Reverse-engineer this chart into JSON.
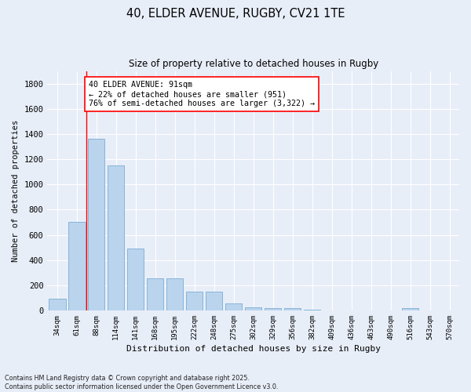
{
  "title1": "40, ELDER AVENUE, RUGBY, CV21 1TE",
  "title2": "Size of property relative to detached houses in Rugby",
  "xlabel": "Distribution of detached houses by size in Rugby",
  "ylabel": "Number of detached properties",
  "bar_labels": [
    "34sqm",
    "61sqm",
    "88sqm",
    "114sqm",
    "141sqm",
    "168sqm",
    "195sqm",
    "222sqm",
    "248sqm",
    "275sqm",
    "302sqm",
    "329sqm",
    "356sqm",
    "382sqm",
    "409sqm",
    "436sqm",
    "463sqm",
    "490sqm",
    "516sqm",
    "543sqm",
    "570sqm"
  ],
  "bar_values": [
    95,
    700,
    1360,
    1150,
    490,
    255,
    255,
    148,
    148,
    55,
    25,
    18,
    18,
    8,
    0,
    0,
    0,
    0,
    18,
    0,
    0
  ],
  "bar_color": "#bad4ed",
  "bar_edge_color": "#7aadd4",
  "annotation_lines": [
    "40 ELDER AVENUE: 91sqm",
    "← 22% of detached houses are smaller (951)",
    "76% of semi-detached houses are larger (3,322) →"
  ],
  "ylim": [
    0,
    1900
  ],
  "yticks": [
    0,
    200,
    400,
    600,
    800,
    1000,
    1200,
    1400,
    1600,
    1800
  ],
  "background_color": "#e8eef8",
  "grid_color": "#ffffff",
  "footnote1": "Contains HM Land Registry data © Crown copyright and database right 2025.",
  "footnote2": "Contains public sector information licensed under the Open Government Licence v3.0."
}
